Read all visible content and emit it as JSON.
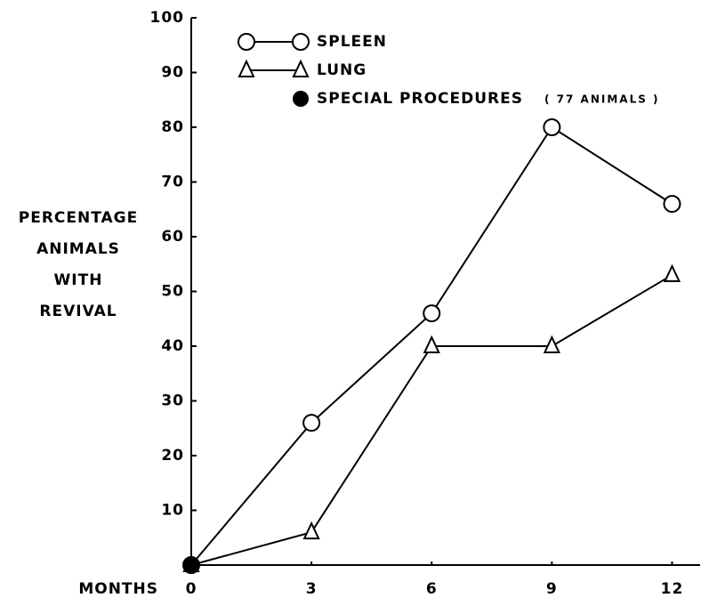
{
  "chart_data": {
    "type": "line",
    "ylabel": [
      "PERCENTAGE",
      "ANIMALS",
      "WITH",
      "REVIVAL"
    ],
    "xlabel": "MONTHS",
    "x": [
      0,
      3,
      6,
      9,
      12
    ],
    "series": [
      {
        "name": "SPLEEN",
        "color": "#000000",
        "marker": "circle",
        "values": [
          0,
          26,
          46,
          80,
          66
        ]
      },
      {
        "name": "LUNG",
        "color": "#000000",
        "marker": "triangle",
        "values": [
          0,
          6,
          40,
          40,
          53
        ]
      },
      {
        "name": "SPECIAL PROCEDURES",
        "color": "#000000",
        "marker": "filled-circle",
        "values": [
          0,
          null,
          null,
          null,
          null
        ]
      }
    ],
    "annotation": "( 77 ANIMALS )",
    "xlim": [
      0,
      12.7
    ],
    "xticks": [
      0,
      3,
      6,
      9,
      12
    ],
    "ylim": [
      0,
      100
    ],
    "yticks": [
      10,
      20,
      30,
      40,
      50,
      60,
      70,
      80,
      90,
      100
    ],
    "grid": false
  }
}
